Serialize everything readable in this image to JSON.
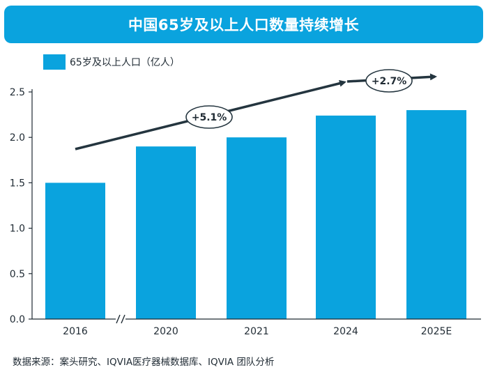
{
  "title": "中国65岁及以上人口数量持续增长",
  "source_note": "数据来源：案头研究、IQVIA医疗器械数据库、IQVIA 团队分析",
  "colors": {
    "bar": "#0aa3de",
    "arrow": "#24353f",
    "axis": "#1f2a33"
  },
  "chart_data": {
    "type": "bar",
    "categories": [
      "2016",
      "2020",
      "2021",
      "2024",
      "2025E"
    ],
    "series": [
      {
        "name": "65岁及以上人口（亿人）",
        "values": [
          1.5,
          1.9,
          2.0,
          2.24,
          2.3
        ]
      }
    ],
    "ylim": [
      0,
      2.5
    ],
    "yticks": [
      "0.0",
      "0.5",
      "1.0",
      "1.5",
      "2.0",
      "2.5"
    ],
    "axis_break_after": "2016",
    "annotations": [
      {
        "label": "+5.1%",
        "from": "2016",
        "to": "2024"
      },
      {
        "label": "+2.7%",
        "from": "2024",
        "to": "2025E"
      }
    ],
    "legend_position": "top-left"
  }
}
